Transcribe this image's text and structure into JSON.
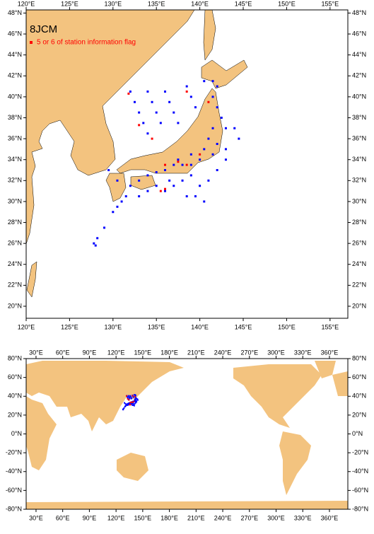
{
  "title": "8JCM",
  "legend": {
    "label": "5 or 6 of station information flag",
    "color": "#ff0000"
  },
  "land_color": "#f3c37f",
  "stations": {
    "color": "#0000ff",
    "lon": [
      132,
      132.5,
      133,
      133.5,
      134,
      134,
      134.5,
      135,
      135.5,
      136,
      136.5,
      137,
      137.5,
      138.5,
      139,
      139.5,
      140.5,
      141.5,
      142,
      141.5,
      142,
      142.5,
      143,
      141.5,
      141,
      142,
      140.5,
      141.5,
      143,
      140,
      139,
      138,
      137,
      136,
      135,
      134,
      133,
      132,
      131.5,
      131,
      130.5,
      130,
      129,
      128.2,
      127.8,
      128,
      139,
      138,
      137,
      136,
      140,
      141,
      142,
      143,
      144.5,
      144,
      139.5,
      140.5,
      138.5,
      135,
      134,
      133,
      137.5,
      139,
      136.5,
      130.5,
      129.5
    ],
    "lat": [
      40.5,
      39.5,
      38.5,
      37.5,
      36.5,
      40.5,
      39.5,
      38.5,
      37.5,
      40.5,
      39.5,
      38.5,
      37.5,
      41,
      40,
      39,
      41.5,
      41.5,
      41,
      40,
      39,
      38,
      37,
      37,
      36,
      35.5,
      35,
      34.5,
      34,
      34,
      33.5,
      33.5,
      33.5,
      33,
      32.8,
      32.5,
      32,
      31.5,
      30.5,
      30,
      29.5,
      29,
      27.5,
      26.5,
      26,
      25.8,
      32.5,
      32,
      31.5,
      31,
      31.5,
      32,
      33,
      35,
      36,
      37,
      30.5,
      30,
      30.5,
      31.5,
      31,
      30.5,
      34,
      34.5,
      32,
      32,
      33
    ]
  },
  "flagged": {
    "color": "#ff0000",
    "lon": [
      131.8,
      133,
      135.5,
      136,
      137.5,
      138.5,
      140,
      141,
      138.5,
      134.5,
      136
    ],
    "lat": [
      40.3,
      37.3,
      31,
      31.2,
      33.8,
      33.5,
      34.5,
      39.5,
      40.5,
      36,
      33.5
    ]
  },
  "maps": [
    {
      "xlim": [
        120,
        157.05
      ],
      "ylim": [
        18.85,
        48.3
      ],
      "xticks": [
        {
          "value": 120,
          "label": "120°E"
        },
        {
          "value": 125,
          "label": "125°E"
        },
        {
          "value": 130,
          "label": "130°E"
        },
        {
          "value": 135,
          "label": "135°E"
        },
        {
          "value": 140,
          "label": "140°E"
        },
        {
          "value": 145,
          "label": "145°E"
        },
        {
          "value": 150,
          "label": "150°E"
        },
        {
          "value": 155,
          "label": "155°E"
        }
      ],
      "yticks": [
        {
          "value": 20,
          "label": "20°N"
        },
        {
          "value": 22,
          "label": "22°N"
        },
        {
          "value": 24,
          "label": "24°N"
        },
        {
          "value": 26,
          "label": "26°N"
        },
        {
          "value": 28,
          "label": "28°N"
        },
        {
          "value": 30,
          "label": "30°N"
        },
        {
          "value": 32,
          "label": "32°N"
        },
        {
          "value": 34,
          "label": "34°N"
        },
        {
          "value": 36,
          "label": "36°N"
        },
        {
          "value": 38,
          "label": "38°N"
        },
        {
          "value": 40,
          "label": "40°N"
        },
        {
          "value": 42,
          "label": "42°N"
        },
        {
          "value": 44,
          "label": "44°N"
        },
        {
          "value": 46,
          "label": "46°N"
        },
        {
          "value": 48,
          "label": "48°N"
        }
      ]
    },
    {
      "xlim": [
        18.9,
        380.7
      ],
      "ylim": [
        -80,
        80
      ],
      "xticks": [
        {
          "value": 30,
          "label": "30°E"
        },
        {
          "value": 60,
          "label": "60°E"
        },
        {
          "value": 90,
          "label": "90°E"
        },
        {
          "value": 120,
          "label": "120°E"
        },
        {
          "value": 150,
          "label": "150°E"
        },
        {
          "value": 180,
          "label": "180°E"
        },
        {
          "value": 210,
          "label": "210°E"
        },
        {
          "value": 240,
          "label": "240°E"
        },
        {
          "value": 270,
          "label": "270°E"
        },
        {
          "value": 300,
          "label": "300°E"
        },
        {
          "value": 330,
          "label": "330°E"
        },
        {
          "value": 360,
          "label": "360°E"
        }
      ],
      "yticks": [
        {
          "value": -80,
          "label": "-80°N"
        },
        {
          "value": -60,
          "label": "-60°N"
        },
        {
          "value": -40,
          "label": "-40°N"
        },
        {
          "value": -20,
          "label": "-20°N"
        },
        {
          "value": 0,
          "label": "0°N"
        },
        {
          "value": 20,
          "label": "20°N"
        },
        {
          "value": 40,
          "label": "40°N"
        },
        {
          "value": 60,
          "label": "60°N"
        },
        {
          "value": 80,
          "label": "80°N"
        }
      ]
    }
  ]
}
